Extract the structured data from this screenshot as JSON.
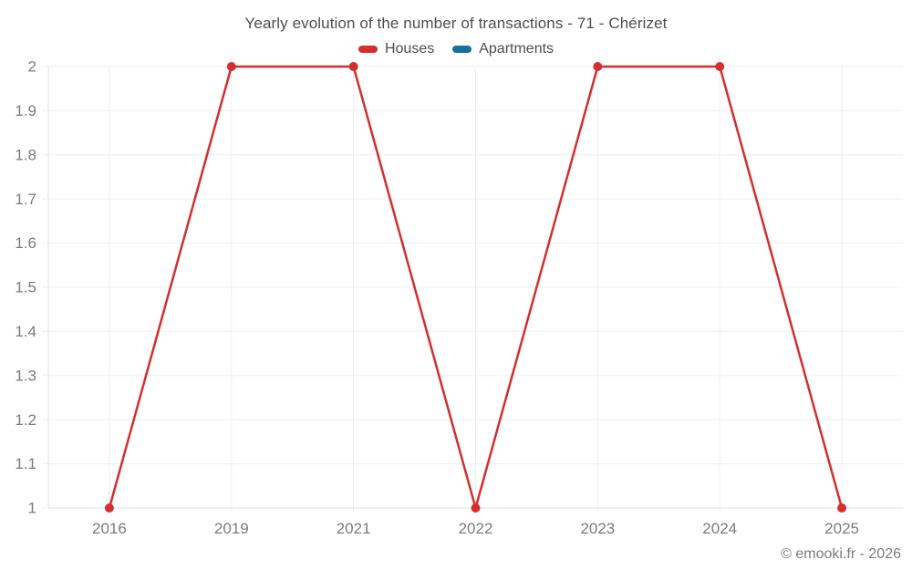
{
  "chart": {
    "title": "Yearly evolution of the number of transactions - 71 - Chérizet",
    "copyright": "© emooki.fr - 2026"
  },
  "chart_data": {
    "type": "line",
    "title": "Yearly evolution of the number of transactions - 71 - Chérizet",
    "categories": [
      "2016",
      "2019",
      "2021",
      "2022",
      "2023",
      "2024",
      "2025"
    ],
    "series": [
      {
        "name": "Houses",
        "color": "#d32f2e",
        "values": [
          1,
          2,
          2,
          1,
          2,
          2,
          1
        ]
      },
      {
        "name": "Apartments",
        "color": "#17719f",
        "values": []
      }
    ],
    "xlabel": "",
    "ylabel": "",
    "ylim": [
      1,
      2
    ],
    "ytick_labels": [
      "2",
      "1.9",
      "1.8",
      "1.7",
      "1.6",
      "1.5",
      "1.4",
      "1.3",
      "1.2",
      "1.1",
      "1"
    ],
    "ytick_values": [
      2,
      1.9,
      1.8,
      1.7,
      1.6,
      1.5,
      1.4,
      1.3,
      1.2,
      1.1,
      1
    ],
    "grid": true,
    "legend_position": "top",
    "grid_color": "#efefef",
    "axis_color": "#e0e0e0"
  }
}
